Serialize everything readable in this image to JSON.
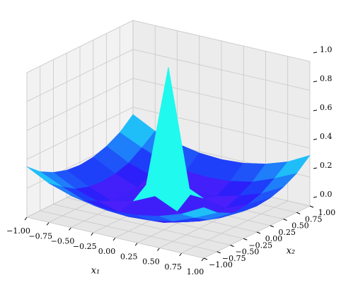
{
  "chart_data": {
    "type": "surface",
    "x_label": "x₁",
    "y_label": "x₂",
    "x": [
      -1,
      -0.75,
      -0.5,
      -0.25,
      0,
      0.25,
      0.5,
      0.75,
      1
    ],
    "y": [
      -1,
      -0.75,
      -0.5,
      -0.25,
      0,
      0.25,
      0.5,
      0.75,
      1
    ],
    "z": [
      [
        0.35,
        0.27,
        0.22,
        0.19,
        0.18,
        0.19,
        0.22,
        0.27,
        0.35
      ],
      [
        0.27,
        0.2,
        0.14,
        0.11,
        0.1,
        0.11,
        0.14,
        0.2,
        0.27
      ],
      [
        0.22,
        0.14,
        0.09,
        0.05,
        0.04,
        0.05,
        0.09,
        0.14,
        0.22
      ],
      [
        0.19,
        0.11,
        0.05,
        0.08,
        0.15,
        0.08,
        0.05,
        0.11,
        0.19
      ],
      [
        0.18,
        0.1,
        0.04,
        0.15,
        1.0,
        0.15,
        0.04,
        0.1,
        0.18
      ],
      [
        0.19,
        0.11,
        0.05,
        0.08,
        0.15,
        0.08,
        0.05,
        0.11,
        0.19
      ],
      [
        0.22,
        0.14,
        0.09,
        0.05,
        0.04,
        0.05,
        0.09,
        0.14,
        0.22
      ],
      [
        0.27,
        0.2,
        0.14,
        0.11,
        0.1,
        0.11,
        0.14,
        0.2,
        0.27
      ],
      [
        0.35,
        0.27,
        0.22,
        0.19,
        0.18,
        0.19,
        0.22,
        0.27,
        0.35
      ]
    ],
    "xlim": [
      -1,
      1
    ],
    "ylim": [
      -1,
      1
    ],
    "zlim": [
      0,
      1
    ],
    "xticks": [
      {
        "value": -1,
        "label": "−1.00"
      },
      {
        "value": -0.75,
        "label": "−0.75"
      },
      {
        "value": -0.5,
        "label": "−0.50"
      },
      {
        "value": -0.25,
        "label": "−0.25"
      },
      {
        "value": 0,
        "label": "0.00"
      },
      0.25,
      {
        "value": 0.5,
        "label": "0.50"
      },
      0.75,
      {
        "value": 1,
        "label": "1.00"
      }
    ],
    "yticks": [
      {
        "value": -1,
        "label": "−1.00"
      },
      {
        "value": -0.75,
        "label": "−0.75"
      },
      {
        "value": -0.5,
        "label": "−0.50"
      },
      {
        "value": -0.25,
        "label": "−0.25"
      },
      {
        "value": 0,
        "label": "0.00"
      },
      0.25,
      {
        "value": 0.5,
        "label": "0.50"
      },
      0.75,
      {
        "value": 1,
        "label": "1.00"
      }
    ],
    "zticks": [
      {
        "value": 0,
        "label": "0.0"
      },
      0.2,
      0.4,
      0.6,
      0.8,
      {
        "value": 1,
        "label": "1.0"
      }
    ],
    "colormap": "rainbow",
    "grid": true
  }
}
